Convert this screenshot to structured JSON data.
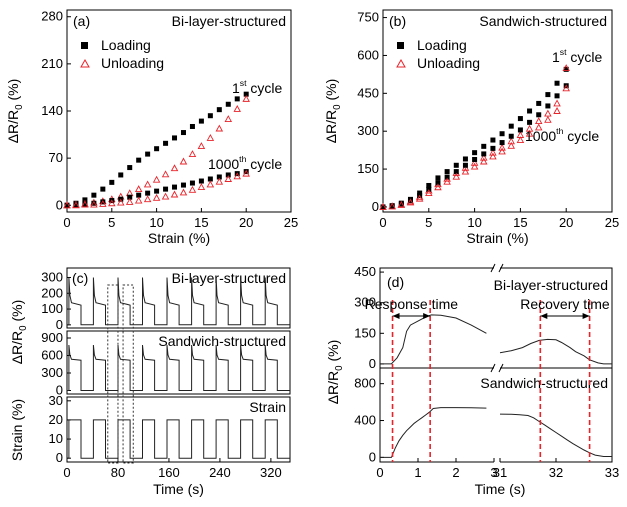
{
  "colors": {
    "loading": "#000000",
    "unloading": "#e8232a",
    "guide": "#e8232a",
    "axis": "#000000"
  },
  "chart_data": [
    {
      "id": "a",
      "type": "scatter",
      "panel_label": "(a)",
      "title": "Bi-layer-structured",
      "xlabel": "Strain (%)",
      "ylabel": "ΔR/R0 (%)",
      "xlim": [
        0,
        25
      ],
      "ylim": [
        -10,
        290
      ],
      "xticks": [
        0,
        5,
        10,
        15,
        20,
        25
      ],
      "yticks": [
        0,
        70,
        140,
        210,
        280
      ],
      "legend": {
        "placement": "top-left",
        "entries": [
          "Loading",
          "Unloading"
        ]
      },
      "annotations": [
        {
          "pre": "1",
          "sup": "st",
          "post": " cycle"
        },
        {
          "pre": "1000",
          "sup": "th",
          "post": " cycle"
        }
      ],
      "series": [
        {
          "name": "Loading",
          "marker": "square",
          "x": [
            0,
            1,
            2,
            3,
            4,
            5,
            6,
            7,
            8,
            9,
            10,
            11,
            12,
            13,
            14,
            15,
            16,
            17,
            18,
            19,
            20
          ],
          "y": [
            0,
            3,
            8,
            15,
            24,
            34,
            45,
            56,
            67,
            76,
            84,
            92,
            100,
            108,
            117,
            125,
            133,
            142,
            150,
            158,
            165
          ]
        },
        {
          "name": "Unloading",
          "marker": "triangle",
          "x": [
            0,
            1,
            2,
            3,
            4,
            5,
            6,
            7,
            8,
            9,
            10,
            11,
            12,
            13,
            14,
            15,
            16,
            17,
            18,
            19,
            20
          ],
          "y": [
            0,
            1,
            2,
            4,
            6,
            9,
            13,
            18,
            24,
            31,
            38,
            46,
            55,
            65,
            76,
            88,
            100,
            114,
            128,
            143,
            158
          ]
        },
        {
          "name": "Loading",
          "marker": "square",
          "x": [
            0,
            1,
            2,
            3,
            4,
            5,
            6,
            7,
            8,
            9,
            10,
            11,
            12,
            13,
            14,
            15,
            16,
            17,
            18,
            19,
            20
          ],
          "y": [
            0,
            1,
            2,
            3,
            5,
            7,
            9,
            12,
            15,
            18,
            21,
            24,
            27,
            30,
            33,
            36,
            39,
            42,
            45,
            47,
            50
          ]
        },
        {
          "name": "Unloading",
          "marker": "triangle",
          "x": [
            0,
            1,
            2,
            3,
            4,
            5,
            6,
            7,
            8,
            9,
            10,
            11,
            12,
            13,
            14,
            15,
            16,
            17,
            18,
            19,
            20
          ],
          "y": [
            0,
            0,
            1,
            1,
            2,
            3,
            4,
            5,
            7,
            9,
            11,
            13,
            16,
            19,
            23,
            27,
            31,
            35,
            39,
            43,
            47
          ]
        }
      ]
    },
    {
      "id": "b",
      "type": "scatter",
      "panel_label": "(b)",
      "title": "Sandwich-structured",
      "xlabel": "Strain (%)",
      "ylabel": "ΔR/R0 (%)",
      "xlim": [
        0,
        25
      ],
      "ylim": [
        -20,
        780
      ],
      "xticks": [
        0,
        5,
        10,
        15,
        20,
        25
      ],
      "yticks": [
        0,
        150,
        300,
        450,
        600,
        750
      ],
      "legend": {
        "placement": "top-left",
        "entries": [
          "Loading",
          "Unloading"
        ]
      },
      "annotations": [
        {
          "pre": "1",
          "sup": "st",
          "post": " cycle"
        },
        {
          "pre": "1000",
          "sup": "th",
          "post": " cycle"
        }
      ],
      "series": [
        {
          "name": "Loading",
          "marker": "square",
          "x": [
            0,
            1,
            2,
            3,
            4,
            5,
            6,
            7,
            8,
            9,
            10,
            11,
            12,
            13,
            14,
            15,
            16,
            17,
            18,
            19,
            20
          ],
          "y": [
            0,
            5,
            15,
            30,
            55,
            85,
            115,
            140,
            165,
            190,
            215,
            240,
            265,
            290,
            320,
            350,
            380,
            410,
            445,
            490,
            545
          ]
        },
        {
          "name": "Unloading",
          "marker": "triangle",
          "x": [
            0,
            1,
            2,
            3,
            4,
            5,
            6,
            7,
            8,
            9,
            10,
            11,
            12,
            13,
            14,
            15,
            16,
            17,
            18,
            19,
            20
          ],
          "y": [
            0,
            3,
            10,
            22,
            40,
            65,
            90,
            112,
            135,
            155,
            175,
            195,
            215,
            235,
            260,
            285,
            310,
            340,
            370,
            410,
            550
          ]
        },
        {
          "name": "Loading",
          "marker": "square",
          "x": [
            0,
            1,
            2,
            3,
            4,
            5,
            6,
            7,
            8,
            9,
            10,
            11,
            12,
            13,
            14,
            15,
            16,
            17,
            18,
            19,
            20
          ],
          "y": [
            0,
            4,
            12,
            25,
            45,
            70,
            95,
            118,
            140,
            165,
            188,
            210,
            232,
            255,
            280,
            305,
            335,
            365,
            400,
            440,
            480
          ]
        },
        {
          "name": "Unloading",
          "marker": "triangle",
          "x": [
            0,
            1,
            2,
            3,
            4,
            5,
            6,
            7,
            8,
            9,
            10,
            11,
            12,
            13,
            14,
            15,
            16,
            17,
            18,
            19,
            20
          ],
          "y": [
            0,
            2,
            8,
            18,
            33,
            55,
            78,
            100,
            120,
            140,
            160,
            180,
            200,
            220,
            242,
            265,
            290,
            315,
            345,
            380,
            470
          ]
        }
      ]
    },
    {
      "id": "c",
      "type": "line",
      "panel_label": "(c)",
      "xlabel": "Time (s)",
      "xlim": [
        0,
        350
      ],
      "xticks": [
        0,
        80,
        160,
        240,
        320
      ],
      "dashed_windows": [
        [
          64,
          80
        ],
        [
          88,
          104
        ]
      ],
      "subplots": [
        {
          "title": "Bi-layer-structured",
          "ylabel": "",
          "ylim": [
            -20,
            360
          ],
          "yticks": [
            0,
            100,
            200,
            300
          ]
        },
        {
          "title": "Sandwich-structured",
          "ylabel": "ΔR/R0 (%)",
          "ylim": [
            -60,
            1020
          ],
          "yticks": [
            0,
            300,
            600,
            900
          ]
        },
        {
          "title": "Strain",
          "ylabel": "Strain (%)",
          "ylim": [
            -2,
            32
          ],
          "yticks": [
            0,
            10,
            20,
            30
          ]
        }
      ],
      "cycle": {
        "first_start": 3,
        "period": 38.5,
        "on_duration": 19,
        "cycles": 9
      }
    },
    {
      "id": "d",
      "type": "line",
      "panel_label": "(d)",
      "xlabel": "Time (s)",
      "xlim": [
        0,
        33
      ],
      "axis_break": [
        3,
        31
      ],
      "xticks": [
        0,
        1,
        2,
        3,
        31,
        32,
        33
      ],
      "response_time_label": "Response time",
      "recovery_time_label": "Recovery time",
      "guide_lines_x": [
        0.33,
        1.32,
        31.72,
        32.6
      ],
      "subplots": [
        {
          "title": "Bi-layer-structured",
          "ylabel": "",
          "ylim": [
            -20,
            470
          ],
          "yticks": [
            0,
            150,
            300,
            450
          ],
          "segments": [
            {
              "x": [
                0,
                0.3,
                0.45,
                0.6,
                0.7,
                0.8,
                1.0,
                1.2,
                1.35,
                1.6,
                2.0,
                2.4,
                2.8
              ],
              "y": [
                0,
                0,
                30,
                80,
                160,
                190,
                210,
                230,
                240,
                238,
                225,
                190,
                150
              ]
            },
            {
              "x": [
                31.0,
                31.2,
                31.4,
                31.55,
                31.7,
                31.85,
                32.0,
                32.1,
                32.25,
                32.35,
                32.5,
                32.6,
                32.75,
                32.85,
                33.0
              ],
              "y": [
                55,
                65,
                80,
                100,
                115,
                120,
                118,
                105,
                80,
                60,
                40,
                20,
                5,
                0,
                0
              ]
            }
          ]
        },
        {
          "title": "Sandwich-structured",
          "ylabel": "ΔR/R0 (%)",
          "ylim": [
            -50,
            970
          ],
          "yticks": [
            0,
            400,
            800
          ],
          "segments": [
            {
              "x": [
                0,
                0.3,
                0.4,
                0.5,
                0.6,
                0.7,
                0.8,
                0.9,
                1.0,
                1.1,
                1.2,
                1.3,
                1.4,
                1.6,
                2.0,
                2.4,
                2.8
              ],
              "y": [
                0,
                0,
                100,
                180,
                240,
                290,
                330,
                370,
                400,
                430,
                460,
                490,
                530,
                540,
                540,
                538,
                535
              ]
            },
            {
              "x": [
                31.0,
                31.2,
                31.35,
                31.5,
                31.6,
                31.7,
                31.8,
                31.9,
                32.0,
                32.1,
                32.2,
                32.3,
                32.4,
                32.5,
                32.6,
                32.7,
                32.85,
                33.0
              ],
              "y": [
                470,
                468,
                462,
                455,
                430,
                390,
                350,
                310,
                270,
                230,
                190,
                150,
                115,
                80,
                50,
                25,
                10,
                10
              ]
            }
          ]
        }
      ]
    }
  ]
}
